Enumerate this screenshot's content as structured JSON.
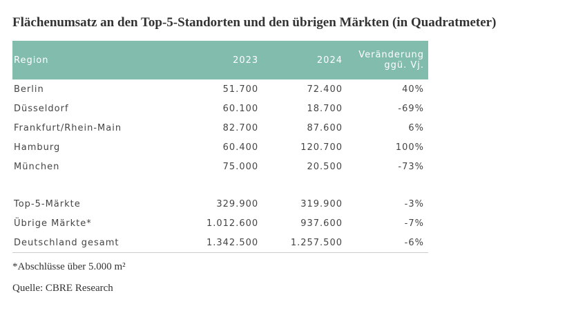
{
  "header": {
    "title": "Flächenumsatz an den Top-5-Standorten und den übrigen Märkten (in Quadratmeter)"
  },
  "table": {
    "columns": [
      "Region",
      "2023",
      "2024",
      "Veränderung ggü. Vj."
    ],
    "rows": [
      [
        "Berlin",
        "51.700",
        "72.400",
        "40%"
      ],
      [
        "Düsseldorf",
        "60.100",
        "18.700",
        "-69%"
      ],
      [
        "Frankfurt/Rhein-Main",
        "82.700",
        "87.600",
        "6%"
      ],
      [
        "Hamburg",
        "60.400",
        "120.700",
        "100%"
      ],
      [
        "München",
        "75.000",
        "20.500",
        "-73%"
      ]
    ],
    "summary_rows": [
      [
        "Top-5-Märkte",
        "329.900",
        "319.900",
        "-3%"
      ],
      [
        "Übrige Märkte*",
        "1.012.600",
        "937.600",
        "-7%"
      ],
      [
        "Deutschland gesamt",
        "1.342.500",
        "1.257.500",
        "-6%"
      ]
    ]
  },
  "footer": {
    "note": "*Abschlüsse über 5.000 m²",
    "source": "Quelle: CBRE Research"
  }
}
